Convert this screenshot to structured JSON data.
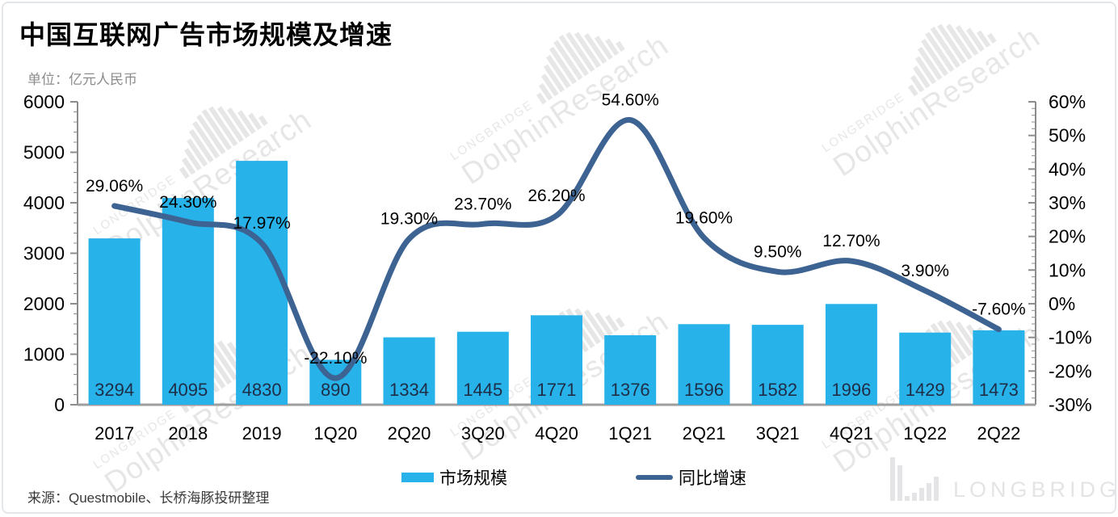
{
  "colors": {
    "bar": "#27b2ea",
    "line": "#3d6392",
    "bar_label": "#1f2d46",
    "axis": "#8c8c8c",
    "baseline": "#9e9e9e",
    "text": "#000000",
    "subtitle": "#8c8c8c",
    "source": "#3a3a3a",
    "watermark": "#cfcfcf",
    "logo": "#e4e4e6"
  },
  "watermark": {
    "brand": "LONGBRIDGE",
    "research": "DolphinResearch"
  },
  "logo": {
    "text": "LONGBRIDGE"
  },
  "source": {
    "text": "来源：Questmobile、长桥海豚投研整理"
  },
  "chart_data": {
    "type": "combo-bar-line",
    "title": "中国互联网广告市场规模及增速",
    "unit_label": "单位：亿元人民币",
    "categories": [
      "2017",
      "2018",
      "2019",
      "1Q20",
      "2Q20",
      "3Q20",
      "4Q20",
      "1Q21",
      "2Q21",
      "3Q21",
      "4Q21",
      "1Q22",
      "2Q22"
    ],
    "series": [
      {
        "name": "市场规模",
        "type": "bar",
        "axis": "left",
        "values": [
          3294,
          4095,
          4830,
          890,
          1334,
          1445,
          1771,
          1376,
          1596,
          1582,
          1996,
          1429,
          1473
        ]
      },
      {
        "name": "同比增速",
        "type": "line",
        "axis": "right",
        "values_pct": [
          29.06,
          24.3,
          17.97,
          -22.1,
          19.3,
          23.7,
          26.2,
          54.6,
          19.6,
          9.5,
          12.7,
          3.9,
          -7.6
        ],
        "labels": [
          "29.06%",
          "24.30%",
          "17.97%",
          "-22.10%",
          "19.30%",
          "23.70%",
          "26.20%",
          "54.60%",
          "19.60%",
          "9.50%",
          "12.70%",
          "3.90%",
          "-7.60%"
        ]
      }
    ],
    "left_axis": {
      "min": 0,
      "max": 6000,
      "step": 1000,
      "minor_step": 200,
      "ticks": [
        "6000",
        "5000",
        "4000",
        "3000",
        "2000",
        "1000",
        "0"
      ]
    },
    "right_axis": {
      "min": -30,
      "max": 60,
      "step": 10,
      "minor_step": 2,
      "ticks": [
        "60%",
        "50%",
        "40%",
        "30%",
        "20%",
        "10%",
        "0%",
        "-10%",
        "-20%",
        "-30%"
      ]
    },
    "grid": false,
    "legend_position": "bottom"
  }
}
